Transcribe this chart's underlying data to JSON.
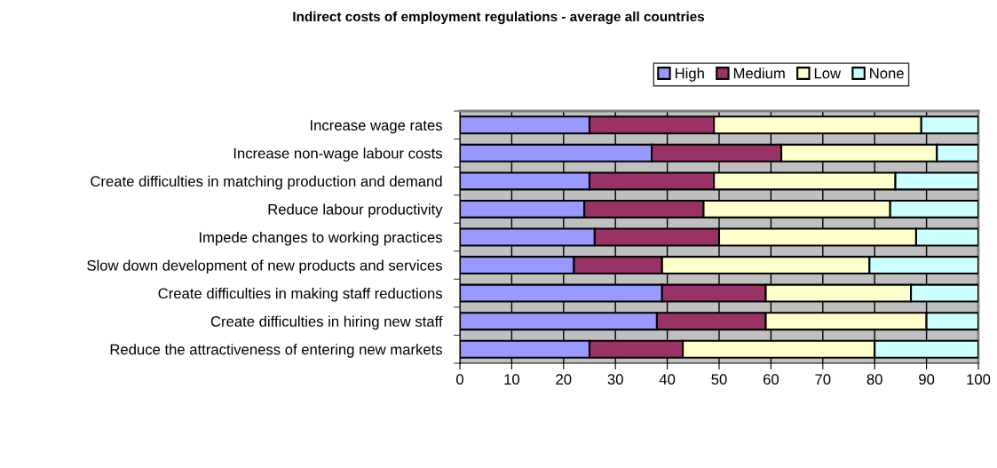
{
  "chart_data": {
    "type": "bar",
    "orientation": "horizontal",
    "stacked": true,
    "title": "Indirect costs of employment regulations - average all countries",
    "categories": [
      "Increase wage rates",
      "Increase non-wage labour costs",
      "Create difficulties in matching production and demand",
      "Reduce labour productivity",
      "Impede changes to working practices",
      "Slow down development of new products and services",
      "Create difficulties in making staff reductions",
      "Create difficulties in hiring new staff",
      "Reduce the attractiveness of entering new markets"
    ],
    "series": [
      {
        "name": "High",
        "color": "#9999ff",
        "values": [
          25,
          37,
          25,
          24,
          26,
          22,
          39,
          38,
          25
        ]
      },
      {
        "name": "Medium",
        "color": "#993366",
        "values": [
          24,
          25,
          24,
          23,
          24,
          17,
          20,
          21,
          18
        ]
      },
      {
        "name": "Low",
        "color": "#ffffcc",
        "values": [
          40,
          30,
          35,
          36,
          38,
          40,
          28,
          31,
          37
        ]
      },
      {
        "name": "None",
        "color": "#ccffff",
        "values": [
          11,
          8,
          16,
          17,
          12,
          21,
          13,
          10,
          20
        ]
      }
    ],
    "xlim": [
      0,
      100
    ],
    "xticks": [
      0,
      10,
      20,
      30,
      40,
      50,
      60,
      70,
      80,
      90,
      100
    ],
    "grid": "x",
    "legend": "top right"
  }
}
